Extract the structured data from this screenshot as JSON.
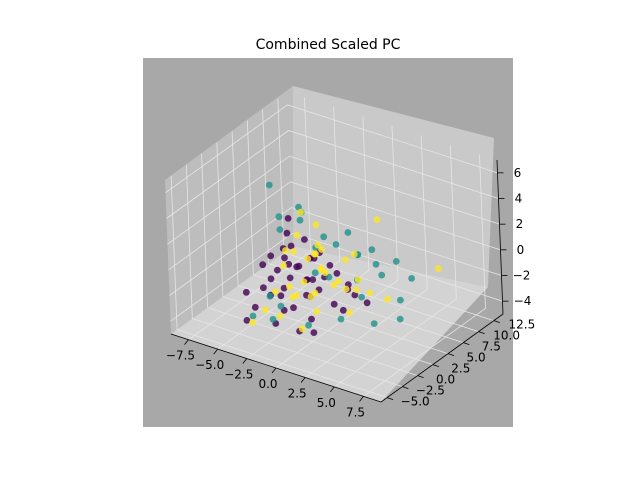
{
  "chart_data": {
    "type": "scatter3d",
    "title": "Combined Scaled PC",
    "xlabel": "",
    "ylabel": "",
    "zlabel": "",
    "xlim": [
      -9,
      9
    ],
    "ylim": [
      -6,
      14
    ],
    "zlim": [
      -5,
      7
    ],
    "x_ticks": [
      "−7.5",
      "−5.0",
      "−2.5",
      "0.0",
      "2.5",
      "5.0",
      "7.5"
    ],
    "y_ticks": [
      "−5.0",
      "−2.5",
      "0.0",
      "2.5",
      "5.0",
      "7.5",
      "10.0",
      "12.5"
    ],
    "z_ticks": [
      "−4",
      "−2",
      "0",
      "2",
      "4",
      "6"
    ],
    "grid": true,
    "legend": "none",
    "colors": {
      "pane_back": "#c9c9c9",
      "pane_side": "#bdbdbd",
      "pane_floor": "#d3d3d3",
      "background": "#a8a8a8",
      "class_0": "#440154",
      "class_1": "#21918c",
      "class_2": "#fde725"
    },
    "series": [
      {
        "color": "#440154",
        "points": [
          [
            -1.0,
            -1.0,
            2.5
          ],
          [
            -1.5,
            -1.2,
            1.5
          ],
          [
            -0.5,
            -0.8,
            1.0
          ],
          [
            -2.0,
            -1.5,
            0.5
          ],
          [
            0.0,
            -0.5,
            0.0
          ],
          [
            -1.2,
            -2.0,
            -0.5
          ],
          [
            0.5,
            -1.0,
            -1.0
          ],
          [
            -0.8,
            -0.6,
            0.8
          ],
          [
            -2.5,
            -1.8,
            -1.5
          ],
          [
            -1.0,
            -2.5,
            -2.0
          ],
          [
            0.8,
            -1.5,
            -2.5
          ],
          [
            -3.0,
            -2.0,
            -1.0
          ],
          [
            -0.2,
            -0.3,
            3.0
          ],
          [
            -1.8,
            -0.8,
            2.0
          ],
          [
            0.3,
            0.2,
            1.5
          ],
          [
            -2.2,
            -2.2,
            0.0
          ],
          [
            1.0,
            -0.5,
            -0.5
          ],
          [
            -1.5,
            -3.0,
            -3.0
          ],
          [
            0.0,
            -2.0,
            -3.5
          ],
          [
            2.0,
            0.0,
            -1.5
          ],
          [
            -3.5,
            -2.5,
            -2.5
          ],
          [
            1.5,
            -2.5,
            -3.0
          ],
          [
            -0.5,
            1.0,
            1.0
          ],
          [
            -2.8,
            -1.0,
            1.2
          ],
          [
            0.6,
            1.2,
            -0.2
          ],
          [
            -1.1,
            -1.4,
            3.6
          ],
          [
            2.5,
            0.5,
            -2.0
          ],
          [
            -4.0,
            -3.0,
            -3.5
          ],
          [
            0.2,
            -3.2,
            -1.2
          ],
          [
            -0.7,
            0.6,
            -1.8
          ],
          [
            1.8,
            1.0,
            0.5
          ],
          [
            -2.0,
            0.5,
            -0.8
          ],
          [
            3.0,
            1.5,
            -1.0
          ],
          [
            -1.6,
            -0.2,
            4.2
          ],
          [
            0.9,
            0.0,
            2.2
          ],
          [
            -3.2,
            -1.6,
            0.6
          ],
          [
            1.2,
            -1.8,
            0.8
          ],
          [
            -0.4,
            -2.6,
            1.8
          ],
          [
            2.2,
            2.0,
            -0.6
          ],
          [
            -2.6,
            0.0,
            -2.2
          ],
          [
            0.4,
            2.5,
            0.2
          ],
          [
            -1.3,
            1.8,
            -1.2
          ],
          [
            3.5,
            2.5,
            -1.8
          ],
          [
            -4.5,
            -2.0,
            -1.8
          ],
          [
            1.6,
            3.0,
            -1.5
          ]
        ]
      },
      {
        "color": "#21918c",
        "points": [
          [
            -0.5,
            -0.5,
            5.5
          ],
          [
            -3.5,
            0.5,
            6.0
          ],
          [
            -1.0,
            0.8,
            4.5
          ],
          [
            1.0,
            2.5,
            2.0
          ],
          [
            2.0,
            4.0,
            1.0
          ],
          [
            3.5,
            5.0,
            -0.5
          ],
          [
            -2.0,
            -2.5,
            -3.0
          ],
          [
            4.0,
            6.5,
            0.2
          ],
          [
            -1.5,
            1.5,
            3.5
          ],
          [
            0.5,
            1.5,
            2.8
          ],
          [
            2.5,
            3.5,
            -2.0
          ],
          [
            -3.0,
            -1.0,
            -2.0
          ],
          [
            5.0,
            7.0,
            -1.0
          ],
          [
            1.5,
            5.0,
            0.5
          ],
          [
            -2.5,
            0.0,
            4.0
          ],
          [
            3.0,
            4.5,
            1.5
          ],
          [
            0.0,
            3.0,
            -1.0
          ],
          [
            -4.0,
            -2.0,
            -3.5
          ],
          [
            4.5,
            6.0,
            -2.5
          ],
          [
            2.0,
            1.0,
            -3.0
          ],
          [
            6.5,
            -2.0,
            -1.0
          ],
          [
            -1.0,
            -3.0,
            -1.5
          ],
          [
            1.0,
            -1.0,
            1.0
          ],
          [
            3.0,
            2.0,
            0.0
          ],
          [
            5.5,
            4.0,
            -3.0
          ],
          [
            -0.5,
            2.0,
            1.5
          ],
          [
            2.5,
            6.0,
            -0.3
          ],
          [
            -3.0,
            1.0,
            2.5
          ],
          [
            0.8,
            -2.0,
            -2.8
          ],
          [
            1.8,
            3.0,
            3.0
          ]
        ]
      },
      {
        "color": "#fde725",
        "points": [
          [
            -0.5,
            -0.2,
            5.0
          ],
          [
            3.0,
            5.5,
            3.5
          ],
          [
            -1.0,
            0.0,
            3.0
          ],
          [
            0.5,
            0.5,
            2.5
          ],
          [
            -1.5,
            -1.0,
            2.0
          ],
          [
            0.0,
            1.0,
            1.5
          ],
          [
            1.0,
            0.0,
            1.0
          ],
          [
            -2.0,
            -0.5,
            0.5
          ],
          [
            0.5,
            1.5,
            0.0
          ],
          [
            -1.0,
            -1.5,
            -0.5
          ],
          [
            1.5,
            1.0,
            -0.5
          ],
          [
            -0.5,
            -2.0,
            -1.0
          ],
          [
            2.0,
            2.0,
            -1.0
          ],
          [
            -2.5,
            -1.0,
            -1.5
          ],
          [
            0.0,
            0.0,
            -1.5
          ],
          [
            1.0,
            -1.0,
            -2.0
          ],
          [
            -1.5,
            0.5,
            -2.0
          ],
          [
            2.5,
            1.5,
            -2.5
          ],
          [
            -3.5,
            -3.0,
            -3.5
          ],
          [
            0.5,
            -2.5,
            -3.0
          ],
          [
            3.5,
            3.0,
            -1.2
          ],
          [
            1.5,
            3.0,
            0.8
          ],
          [
            -0.2,
            2.2,
            -0.2
          ],
          [
            2.2,
            0.5,
            0.2
          ],
          [
            -2.8,
            -2.2,
            -2.6
          ],
          [
            0.3,
            0.3,
            1.8
          ],
          [
            -0.8,
            1.2,
            0.8
          ],
          [
            1.2,
            -0.2,
            2.6
          ],
          [
            -1.8,
            0.8,
            1.2
          ],
          [
            2.8,
            2.5,
            -0.2
          ],
          [
            0.0,
            -1.0,
            0.0
          ],
          [
            1.8,
            4.0,
            -1.8
          ],
          [
            -1.2,
            -2.8,
            -2.4
          ],
          [
            0.7,
            -0.6,
            -0.8
          ],
          [
            4.2,
            4.5,
            -2.0
          ],
          [
            6.0,
            9.5,
            -0.8
          ],
          [
            -0.3,
            1.8,
            3.4
          ],
          [
            2.0,
            3.5,
            1.2
          ]
        ]
      }
    ]
  }
}
